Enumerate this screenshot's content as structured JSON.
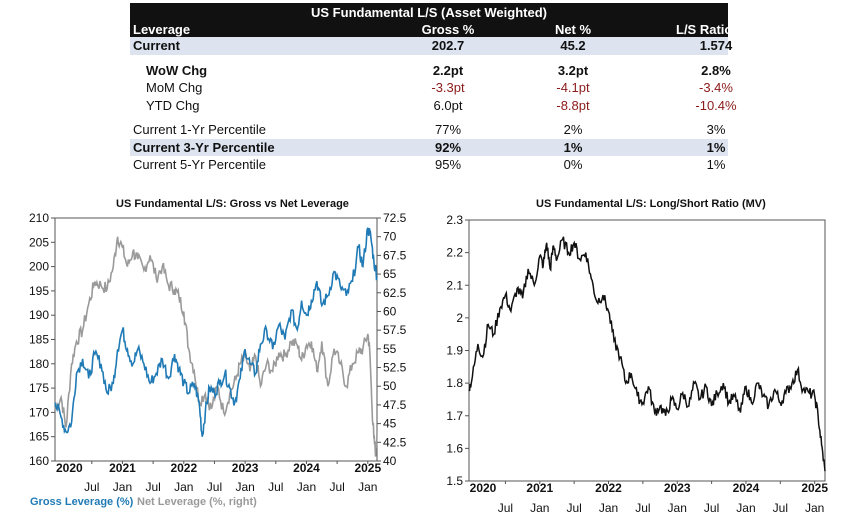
{
  "table": {
    "title": "US Fundamental L/S (Asset Weighted)",
    "headers": [
      "Leverage",
      "Gross %",
      "Net %",
      "L/S Ratio (MV)"
    ],
    "rows": [
      {
        "label": "Current",
        "gross": "202.7",
        "net": "45.2",
        "ratio": "1.574"
      },
      {
        "label": "WoW Chg",
        "gross": "2.2pt",
        "net": "3.2pt",
        "ratio": "2.8%"
      },
      {
        "label": "MoM Chg",
        "gross": "-3.3pt",
        "net": "-4.1pt",
        "ratio": "-3.4%"
      },
      {
        "label": "YTD Chg",
        "gross": "6.0pt",
        "net": "-8.8pt",
        "ratio": "-10.4%"
      },
      {
        "label": "Current 1-Yr Percentile",
        "gross": "77%",
        "net": "2%",
        "ratio": "3%"
      },
      {
        "label": "Current 3-Yr Percentile",
        "gross": "92%",
        "net": "1%",
        "ratio": "1%"
      },
      {
        "label": "Current 5-Yr Percentile",
        "gross": "95%",
        "net": "0%",
        "ratio": "1%"
      }
    ]
  },
  "colors": {
    "gross": "#1f7ab5",
    "net": "#9a9a9a",
    "ratio": "#111111",
    "negative": "#8b1a1a",
    "highlight": "#dde4f0"
  },
  "chart_data": [
    {
      "type": "line",
      "title": "US Fundamental L/S: Gross vs Net Leverage",
      "x_year_labels": [
        "2020",
        "2021",
        "2022",
        "2023",
        "2024",
        "2025"
      ],
      "x_month_labels": [
        "Jul",
        "Jan",
        "Jul",
        "Jan",
        "Jul",
        "Jan",
        "Jul",
        "Jan",
        "Jul",
        "Jan"
      ],
      "x_range": [
        2019.9,
        2025.15
      ],
      "y_left": {
        "ticks": [
          160,
          165,
          170,
          175,
          180,
          185,
          190,
          195,
          200,
          205,
          210
        ],
        "range": [
          160,
          210
        ]
      },
      "y_right": {
        "ticks": [
          "40",
          "42.5",
          "45",
          "47.5",
          "50",
          "52.5",
          "55",
          "57.5",
          "60",
          "62.5",
          "65",
          "67.5",
          "70",
          "72.5"
        ],
        "range": [
          40,
          72.5
        ]
      },
      "legend": [
        "Gross Leverage (%)",
        "Net Leverage (%, right)"
      ],
      "series": [
        {
          "name": "Gross Leverage (%)",
          "axis": "left",
          "x": [
            2019.9,
            2020.0,
            2020.08,
            2020.17,
            2020.25,
            2020.35,
            2020.45,
            2020.55,
            2020.65,
            2020.75,
            2020.85,
            2020.92,
            2021.0,
            2021.08,
            2021.17,
            2021.25,
            2021.35,
            2021.45,
            2021.55,
            2021.65,
            2021.75,
            2021.85,
            2021.92,
            2022.0,
            2022.08,
            2022.17,
            2022.25,
            2022.3,
            2022.35,
            2022.42,
            2022.5,
            2022.58,
            2022.67,
            2022.75,
            2022.83,
            2022.92,
            2023.0,
            2023.08,
            2023.17,
            2023.25,
            2023.35,
            2023.45,
            2023.55,
            2023.65,
            2023.75,
            2023.85,
            2023.92,
            2024.0,
            2024.08,
            2024.17,
            2024.25,
            2024.35,
            2024.45,
            2024.55,
            2024.65,
            2024.75,
            2024.85,
            2024.92,
            2025.0,
            2025.05,
            2025.1,
            2025.15
          ],
          "values": [
            172,
            169,
            166,
            168,
            178,
            181,
            177,
            182,
            180,
            174,
            176,
            183,
            187,
            183,
            180,
            183,
            180,
            176,
            178,
            181,
            177,
            182,
            179,
            176,
            174,
            176,
            172,
            165,
            170,
            175,
            174,
            176,
            178,
            175,
            172,
            177,
            183,
            180,
            178,
            184,
            187,
            183,
            188,
            185,
            191,
            187,
            193,
            190,
            193,
            197,
            192,
            194,
            199,
            196,
            194,
            197,
            204,
            200,
            208,
            206,
            201,
            198
          ]
        },
        {
          "name": "Net Leverage (%, right)",
          "axis": "right",
          "x": [
            2019.9,
            2020.0,
            2020.08,
            2020.17,
            2020.25,
            2020.35,
            2020.45,
            2020.55,
            2020.65,
            2020.75,
            2020.85,
            2020.92,
            2021.0,
            2021.08,
            2021.17,
            2021.25,
            2021.35,
            2021.45,
            2021.55,
            2021.65,
            2021.75,
            2021.85,
            2021.92,
            2022.0,
            2022.08,
            2022.17,
            2022.25,
            2022.35,
            2022.45,
            2022.55,
            2022.65,
            2022.75,
            2022.85,
            2022.92,
            2023.0,
            2023.08,
            2023.17,
            2023.25,
            2023.35,
            2023.45,
            2023.55,
            2023.65,
            2023.75,
            2023.85,
            2023.92,
            2024.0,
            2024.08,
            2024.17,
            2024.25,
            2024.35,
            2024.45,
            2024.55,
            2024.65,
            2024.75,
            2024.85,
            2024.92,
            2025.0,
            2025.03,
            2025.07,
            2025.1,
            2025.13,
            2025.15
          ],
          "values": [
            47,
            48.5,
            44.5,
            53,
            56,
            57.5,
            61,
            64,
            63.5,
            63,
            66,
            70,
            68.5,
            66,
            68,
            67,
            65.5,
            67.5,
            64.5,
            66,
            63.5,
            63,
            62,
            60,
            55,
            52,
            48,
            49,
            47,
            50,
            46.5,
            49,
            51,
            53,
            54,
            52,
            54,
            50,
            53,
            52,
            54.5,
            54,
            56,
            55.5,
            53.5,
            55.5,
            56,
            52,
            56,
            50,
            55,
            53,
            50,
            53,
            54.5,
            55,
            57,
            55,
            47,
            43,
            41,
            44
          ]
        }
      ]
    },
    {
      "type": "line",
      "title": "US Fundamental L/S: Long/Short Ratio (MV)",
      "x_year_labels": [
        "2020",
        "2021",
        "2022",
        "2023",
        "2024",
        "2025"
      ],
      "x_month_labels": [
        "Jul",
        "Jan",
        "Jul",
        "Jan",
        "Jul",
        "Jan",
        "Jul",
        "Jan",
        "Jul",
        "Jan"
      ],
      "x_range": [
        2019.97,
        2025.15
      ],
      "y_axis": {
        "ticks": [
          "1.5",
          "1.6",
          "1.7",
          "1.8",
          "1.9",
          "2",
          "2.1",
          "2.2",
          "2.3"
        ],
        "range": [
          1.5,
          2.3
        ]
      },
      "series": [
        {
          "name": "Long/Short Ratio (MV)",
          "x": [
            2019.97,
            2020.02,
            2020.1,
            2020.17,
            2020.25,
            2020.33,
            2020.42,
            2020.5,
            2020.58,
            2020.67,
            2020.75,
            2020.83,
            2020.92,
            2021.0,
            2021.05,
            2021.1,
            2021.15,
            2021.2,
            2021.25,
            2021.33,
            2021.42,
            2021.5,
            2021.58,
            2021.67,
            2021.75,
            2021.83,
            2021.92,
            2022.0,
            2022.08,
            2022.17,
            2022.25,
            2022.33,
            2022.42,
            2022.5,
            2022.58,
            2022.67,
            2022.75,
            2022.83,
            2022.92,
            2023.0,
            2023.08,
            2023.17,
            2023.25,
            2023.33,
            2023.42,
            2023.5,
            2023.58,
            2023.67,
            2023.75,
            2023.83,
            2023.92,
            2024.0,
            2024.08,
            2024.17,
            2024.25,
            2024.33,
            2024.42,
            2024.5,
            2024.58,
            2024.67,
            2024.75,
            2024.83,
            2024.92,
            2025.0,
            2025.05,
            2025.1,
            2025.15
          ],
          "values": [
            1.78,
            1.82,
            1.92,
            1.88,
            1.98,
            1.95,
            2.03,
            2.07,
            2.02,
            2.09,
            2.06,
            2.15,
            2.1,
            2.19,
            2.16,
            2.23,
            2.15,
            2.22,
            2.18,
            2.24,
            2.2,
            2.23,
            2.18,
            2.2,
            2.12,
            2.05,
            2.07,
            2.02,
            1.93,
            1.88,
            1.8,
            1.83,
            1.76,
            1.74,
            1.79,
            1.71,
            1.73,
            1.7,
            1.75,
            1.72,
            1.77,
            1.73,
            1.8,
            1.75,
            1.79,
            1.73,
            1.77,
            1.8,
            1.74,
            1.76,
            1.71,
            1.79,
            1.74,
            1.8,
            1.76,
            1.73,
            1.78,
            1.74,
            1.77,
            1.8,
            1.84,
            1.78,
            1.77,
            1.76,
            1.7,
            1.61,
            1.53
          ]
        }
      ]
    }
  ]
}
